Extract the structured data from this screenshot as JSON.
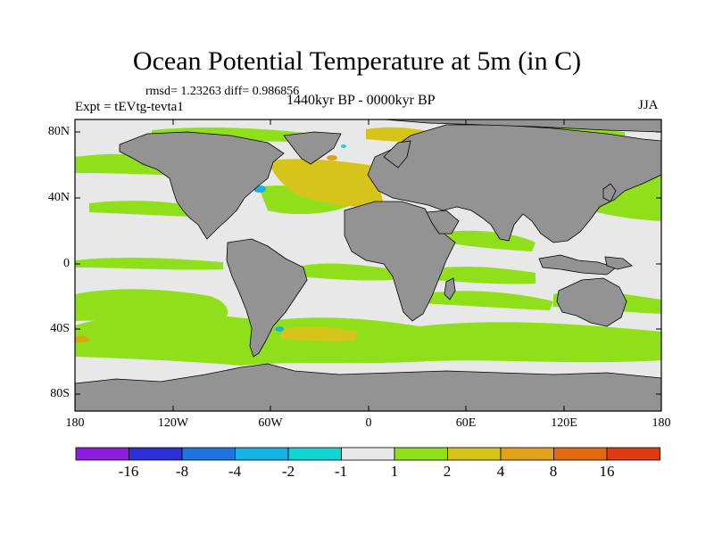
{
  "figure": {
    "title": "Ocean Potential Temperature at 5m (in C)",
    "stats": "rmsd= 1.23263 diff= 0.986856",
    "experiment": "Expt = tEVtg-tevta1",
    "period": "1440kyr BP - 0000kyr BP",
    "season": "JJA"
  },
  "axes": {
    "lat_labels": [
      "80N",
      "40N",
      "0",
      "40S",
      "80S"
    ],
    "lon_labels": [
      "180",
      "120W",
      "60W",
      "0",
      "60E",
      "120E",
      "180"
    ]
  },
  "colorbar": {
    "labels": [
      "-16",
      "-8",
      "-4",
      "-2",
      "-1",
      "1",
      "2",
      "4",
      "8",
      "16"
    ],
    "colors": [
      "#8a1de0",
      "#2f2fd6",
      "#1f74e0",
      "#16b2e4",
      "#12d4d0",
      "#e8e8e8",
      "#8fe01a",
      "#d6c41a",
      "#e0a21a",
      "#e06a10",
      "#e03a10"
    ]
  },
  "palette": {
    "land": "#939393",
    "ocean_neutral": "#e8e8e8",
    "warm_1_2": "#8fe01a",
    "warm_2_4": "#d6c41a",
    "warm_4_8": "#e0a21a",
    "cool_m2_m1": "#12d4d0",
    "cool_m4_m2": "#16b2e4"
  }
}
